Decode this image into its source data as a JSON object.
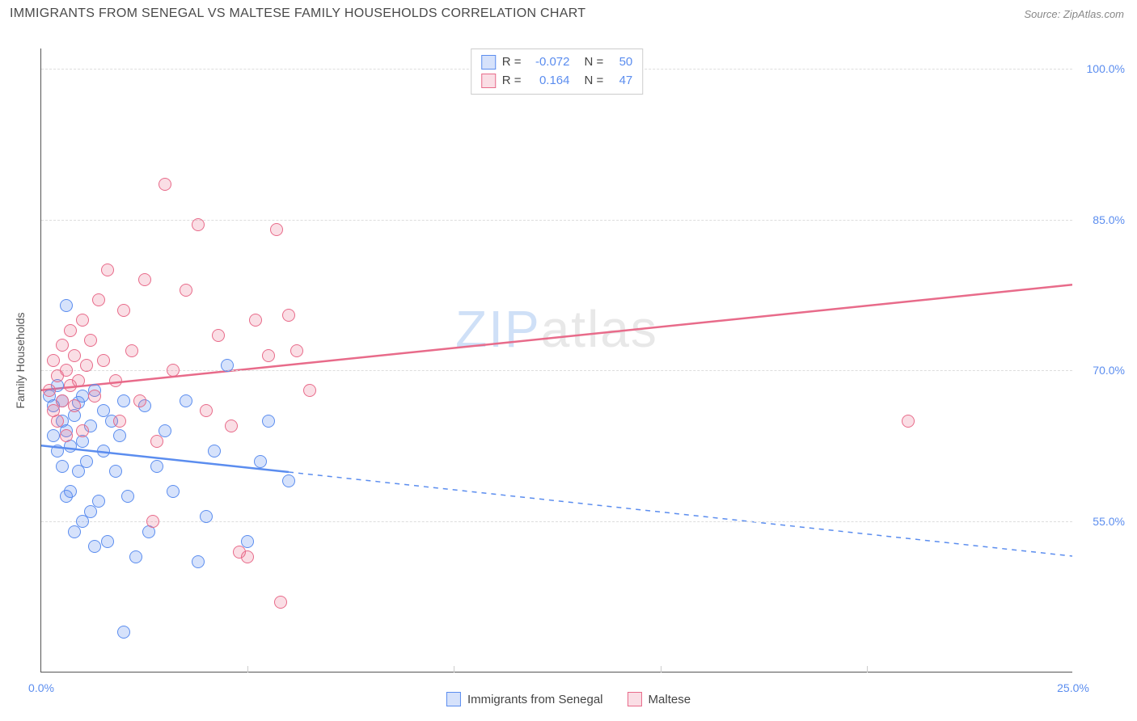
{
  "title": "IMMIGRANTS FROM SENEGAL VS MALTESE FAMILY HOUSEHOLDS CORRELATION CHART",
  "source": "Source: ZipAtlas.com",
  "watermark": {
    "prefix": "ZIP",
    "suffix": "atlas"
  },
  "y_axis_title": "Family Households",
  "chart": {
    "type": "scatter",
    "xlim": [
      0,
      25
    ],
    "ylim": [
      40,
      102
    ],
    "x_ticks": [
      0,
      5,
      10,
      15,
      20,
      25
    ],
    "x_tick_labels": [
      "0.0%",
      "",
      "",
      "",
      "",
      "25.0%"
    ],
    "y_ticks": [
      55,
      70,
      85,
      100
    ],
    "y_tick_labels": [
      "55.0%",
      "70.0%",
      "85.0%",
      "100.0%"
    ],
    "grid_color": "#dddddd",
    "background_color": "#ffffff",
    "point_radius": 8,
    "point_border_width": 1.2,
    "point_fill_opacity": 0.25,
    "line_width": 2.5,
    "series": [
      {
        "name": "Immigrants from Senegal",
        "color": "#5b8def",
        "fill": "rgba(91,141,239,0.25)",
        "border": "#5b8def",
        "R": "-0.072",
        "N": "50",
        "trend": {
          "x1": 0,
          "y1": 62.5,
          "x2": 25,
          "y2": 51.5,
          "solid_until_x": 6
        },
        "points": [
          [
            0.2,
            67.5
          ],
          [
            0.3,
            66.5
          ],
          [
            0.3,
            63.5
          ],
          [
            0.4,
            68.5
          ],
          [
            0.4,
            62.0
          ],
          [
            0.5,
            65.0
          ],
          [
            0.5,
            60.5
          ],
          [
            0.5,
            67.0
          ],
          [
            0.6,
            76.5
          ],
          [
            0.6,
            64.0
          ],
          [
            0.6,
            57.5
          ],
          [
            0.7,
            62.5
          ],
          [
            0.7,
            58.0
          ],
          [
            0.8,
            65.5
          ],
          [
            0.8,
            54.0
          ],
          [
            0.9,
            66.8
          ],
          [
            0.9,
            60.0
          ],
          [
            1.0,
            63.0
          ],
          [
            1.0,
            67.5
          ],
          [
            1.0,
            55.0
          ],
          [
            1.1,
            61.0
          ],
          [
            1.2,
            64.5
          ],
          [
            1.2,
            56.0
          ],
          [
            1.3,
            68.0
          ],
          [
            1.3,
            52.5
          ],
          [
            1.4,
            57.0
          ],
          [
            1.5,
            62.0
          ],
          [
            1.5,
            66.0
          ],
          [
            1.6,
            53.0
          ],
          [
            1.7,
            65.0
          ],
          [
            1.8,
            60.0
          ],
          [
            1.9,
            63.5
          ],
          [
            2.0,
            67.0
          ],
          [
            2.0,
            44.0
          ],
          [
            2.1,
            57.5
          ],
          [
            2.3,
            51.5
          ],
          [
            2.5,
            66.5
          ],
          [
            2.6,
            54.0
          ],
          [
            2.8,
            60.5
          ],
          [
            3.0,
            64.0
          ],
          [
            3.2,
            58.0
          ],
          [
            3.5,
            67.0
          ],
          [
            3.8,
            51.0
          ],
          [
            4.0,
            55.5
          ],
          [
            4.2,
            62.0
          ],
          [
            4.5,
            70.5
          ],
          [
            5.0,
            53.0
          ],
          [
            5.3,
            61.0
          ],
          [
            5.5,
            65.0
          ],
          [
            6.0,
            59.0
          ]
        ]
      },
      {
        "name": "Maltese",
        "color": "#e86b8a",
        "fill": "rgba(232,107,138,0.22)",
        "border": "#e86b8a",
        "R": "0.164",
        "N": "47",
        "trend": {
          "x1": 0,
          "y1": 68.0,
          "x2": 25,
          "y2": 78.5,
          "solid_until_x": 25
        },
        "points": [
          [
            0.2,
            68.0
          ],
          [
            0.3,
            71.0
          ],
          [
            0.3,
            66.0
          ],
          [
            0.4,
            69.5
          ],
          [
            0.4,
            65.0
          ],
          [
            0.5,
            72.5
          ],
          [
            0.5,
            67.0
          ],
          [
            0.6,
            70.0
          ],
          [
            0.6,
            63.5
          ],
          [
            0.7,
            74.0
          ],
          [
            0.7,
            68.5
          ],
          [
            0.8,
            71.5
          ],
          [
            0.8,
            66.5
          ],
          [
            0.9,
            69.0
          ],
          [
            1.0,
            75.0
          ],
          [
            1.0,
            64.0
          ],
          [
            1.1,
            70.5
          ],
          [
            1.2,
            73.0
          ],
          [
            1.3,
            67.5
          ],
          [
            1.4,
            77.0
          ],
          [
            1.5,
            71.0
          ],
          [
            1.6,
            80.0
          ],
          [
            1.8,
            69.0
          ],
          [
            1.9,
            65.0
          ],
          [
            2.0,
            76.0
          ],
          [
            2.2,
            72.0
          ],
          [
            2.4,
            67.0
          ],
          [
            2.5,
            79.0
          ],
          [
            2.7,
            55.0
          ],
          [
            2.8,
            63.0
          ],
          [
            3.0,
            88.5
          ],
          [
            3.2,
            70.0
          ],
          [
            3.5,
            78.0
          ],
          [
            3.8,
            84.5
          ],
          [
            4.0,
            66.0
          ],
          [
            4.3,
            73.5
          ],
          [
            4.6,
            64.5
          ],
          [
            4.8,
            52.0
          ],
          [
            5.0,
            51.5
          ],
          [
            5.2,
            75.0
          ],
          [
            5.5,
            71.5
          ],
          [
            5.7,
            84.0
          ],
          [
            5.8,
            47.0
          ],
          [
            6.0,
            75.5
          ],
          [
            6.2,
            72.0
          ],
          [
            6.5,
            68.0
          ],
          [
            21.0,
            65.0
          ]
        ]
      }
    ]
  },
  "legend_bottom": [
    {
      "label": "Immigrants from Senegal",
      "color": "#5b8def",
      "fill": "rgba(91,141,239,0.25)"
    },
    {
      "label": "Maltese",
      "color": "#e86b8a",
      "fill": "rgba(232,107,138,0.22)"
    }
  ]
}
